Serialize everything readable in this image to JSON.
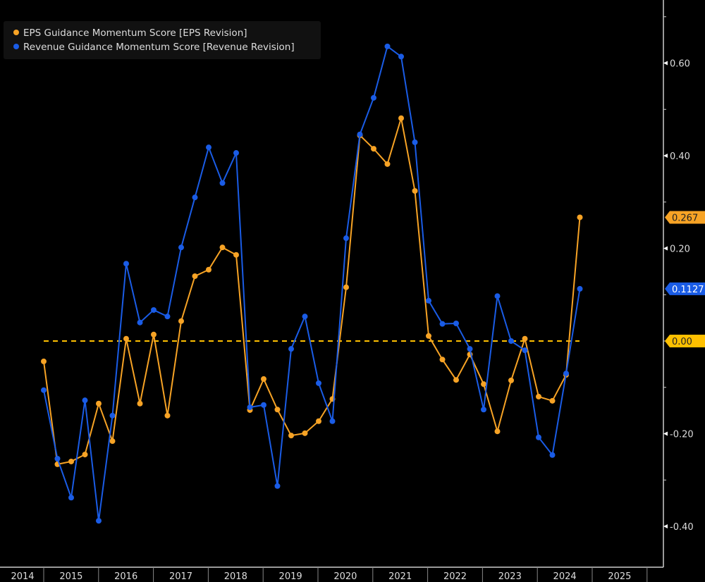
{
  "chart_data": {
    "type": "line",
    "title": "",
    "xlabel": "",
    "ylabel": "",
    "ylim": [
      -0.48,
      0.74
    ],
    "y_ticks": [
      "0.60",
      "0.40",
      "0.20",
      "-0.20",
      "-0.40"
    ],
    "y_tick_values": [
      0.6,
      0.4,
      0.2,
      -0.2,
      -0.4
    ],
    "x_year_labels": [
      "2014",
      "2015",
      "2016",
      "2017",
      "2018",
      "2019",
      "2020",
      "2021",
      "2022",
      "2023",
      "2024",
      "2025"
    ],
    "x_start": "2014 Q4",
    "frequency": "quarterly",
    "reference_line": {
      "value": 0.0,
      "label": "0.00",
      "color": "#ffc000"
    },
    "series": [
      {
        "name": "EPS Guidance Momentum Score [EPS Revision]",
        "color": "#f7a325",
        "last_label": "0.267",
        "values": [
          -0.044,
          -0.266,
          -0.26,
          -0.245,
          -0.135,
          -0.216,
          0.005,
          -0.135,
          0.014,
          -0.161,
          0.043,
          0.14,
          0.154,
          0.202,
          0.186,
          -0.149,
          -0.082,
          -0.148,
          -0.204,
          -0.199,
          -0.173,
          -0.125,
          0.116,
          0.444,
          0.415,
          0.382,
          0.481,
          0.324,
          0.011,
          -0.04,
          -0.084,
          -0.029,
          -0.093,
          -0.195,
          -0.085,
          0.005,
          -0.12,
          -0.129,
          -0.073,
          0.267
        ]
      },
      {
        "name": "Revenue Guidance Momentum Score [Revenue Revision]",
        "color": "#1a5ce6",
        "last_label": "0.1127",
        "values": [
          -0.106,
          -0.254,
          -0.338,
          -0.128,
          -0.388,
          -0.161,
          0.167,
          0.04,
          0.067,
          0.053,
          0.202,
          0.31,
          0.418,
          0.341,
          0.406,
          -0.143,
          -0.138,
          -0.313,
          -0.017,
          0.053,
          -0.091,
          -0.173,
          0.222,
          0.446,
          0.525,
          0.636,
          0.614,
          0.429,
          0.087,
          0.037,
          0.038,
          -0.017,
          -0.148,
          0.097,
          0.0,
          -0.02,
          -0.208,
          -0.246,
          -0.07,
          0.1127
        ]
      }
    ],
    "legend_position": "top-left",
    "grid": false
  }
}
